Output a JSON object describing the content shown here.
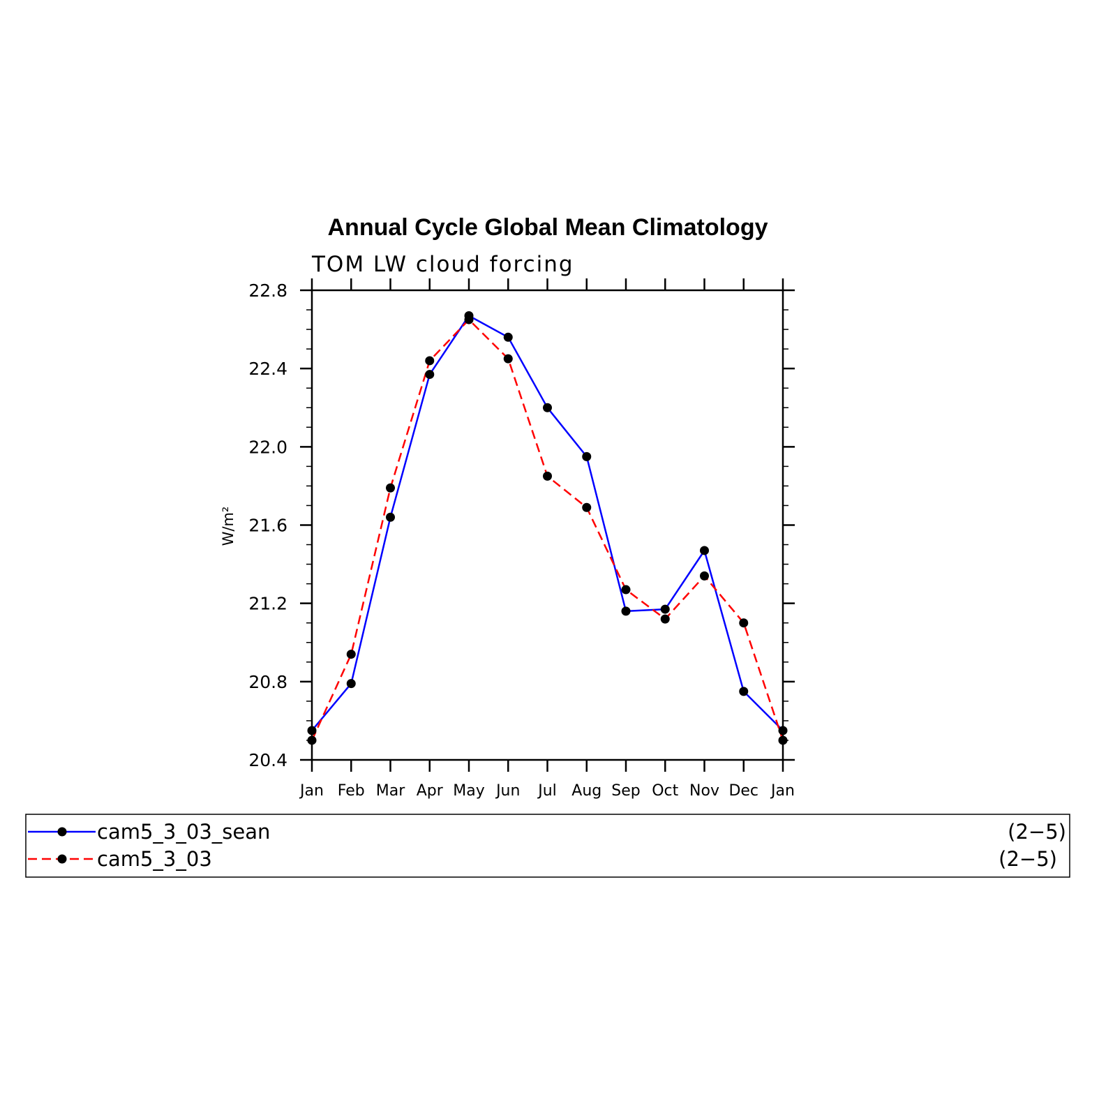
{
  "chart_data": {
    "type": "line",
    "title": "Annual Cycle Global Mean Climatology",
    "subtitle": "TOM LW cloud forcing",
    "ylabel": "W/m²",
    "xlabel": "",
    "categories": [
      "Jan",
      "Feb",
      "Mar",
      "Apr",
      "May",
      "Jun",
      "Jul",
      "Aug",
      "Sep",
      "Oct",
      "Nov",
      "Dec",
      "Jan"
    ],
    "ylim": [
      20.4,
      22.8
    ],
    "yticks": [
      "20.4",
      "20.8",
      "21.2",
      "21.6",
      "22.0",
      "22.4",
      "22.8"
    ],
    "grid": false,
    "legend_position": "bottom",
    "series": [
      {
        "name": "cam5_3_03_sean",
        "range_label": "(2−5)",
        "color": "#0000ff",
        "dash": "solid",
        "values": [
          20.55,
          20.79,
          21.64,
          22.37,
          22.67,
          22.56,
          22.2,
          21.95,
          21.16,
          21.17,
          21.47,
          20.75,
          20.55
        ]
      },
      {
        "name": "cam5_3_03",
        "range_label": "(2−5)",
        "color": "#ff0000",
        "dash": "dashed",
        "values": [
          20.5,
          20.94,
          21.79,
          22.44,
          22.65,
          22.45,
          21.85,
          21.69,
          21.27,
          21.12,
          21.34,
          21.1,
          20.5
        ]
      }
    ]
  }
}
